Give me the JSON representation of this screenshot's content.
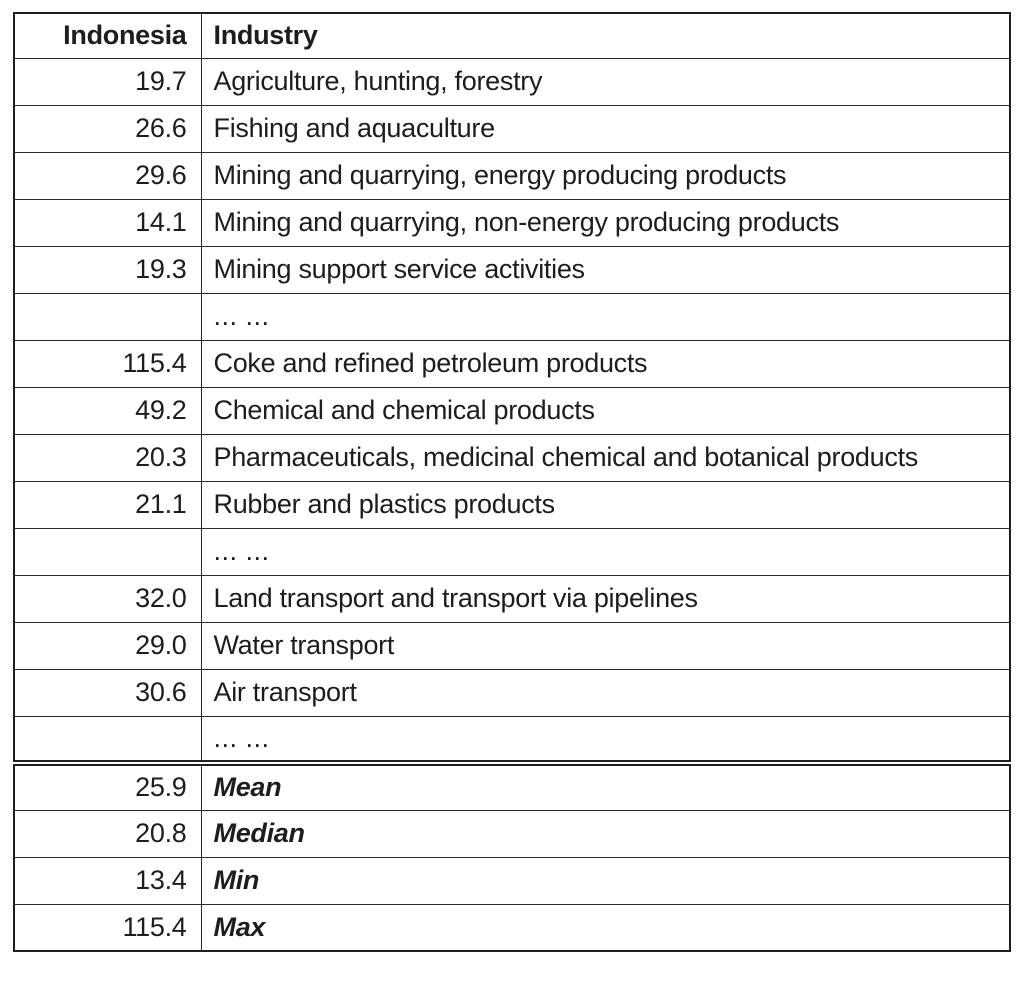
{
  "chart_data": {
    "type": "table",
    "title": "",
    "columns": [
      "Indonesia",
      "Industry"
    ],
    "rows": [
      {
        "value": "19.7",
        "industry": "Agriculture, hunting, forestry",
        "kind": "data"
      },
      {
        "value": "26.6",
        "industry": "Fishing and aquaculture",
        "kind": "data"
      },
      {
        "value": "29.6",
        "industry": "Mining and quarrying, energy producing products",
        "kind": "data"
      },
      {
        "value": "14.1",
        "industry": "Mining and quarrying, non-energy producing products",
        "kind": "data"
      },
      {
        "value": "19.3",
        "industry": "Mining support service activities",
        "kind": "data"
      },
      {
        "value": "",
        "industry": "... ...",
        "kind": "ellipsis"
      },
      {
        "value": "115.4",
        "industry": "Coke and refined petroleum products",
        "kind": "data"
      },
      {
        "value": "49.2",
        "industry": "Chemical and chemical products",
        "kind": "data"
      },
      {
        "value": "20.3",
        "industry": "Pharmaceuticals, medicinal chemical and botanical products",
        "kind": "data"
      },
      {
        "value": "21.1",
        "industry": "Rubber and plastics products",
        "kind": "data"
      },
      {
        "value": "",
        "industry": "... ...",
        "kind": "ellipsis"
      },
      {
        "value": "32.0",
        "industry": "Land transport and transport via pipelines",
        "kind": "data"
      },
      {
        "value": "29.0",
        "industry": "Water transport",
        "kind": "data"
      },
      {
        "value": "30.6",
        "industry": "Air transport",
        "kind": "data"
      },
      {
        "value": "",
        "industry": "...  ...",
        "kind": "ellipsis"
      },
      {
        "value": "25.9",
        "industry": "Mean",
        "kind": "summary"
      },
      {
        "value": "20.8",
        "industry": "Median",
        "kind": "summary"
      },
      {
        "value": "13.4",
        "industry": "Min",
        "kind": "summary"
      },
      {
        "value": "115.4",
        "industry": "Max",
        "kind": "summary"
      }
    ],
    "summary_stats": {
      "mean": 25.9,
      "median": 20.8,
      "min": 13.4,
      "max": 115.4
    }
  }
}
